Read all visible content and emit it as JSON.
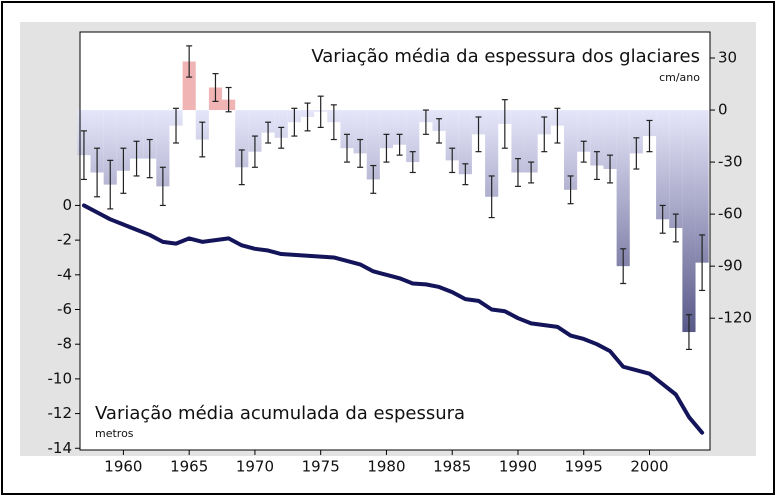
{
  "chart_data": {
    "type": "bar",
    "x": [
      1957,
      1958,
      1959,
      1960,
      1961,
      1962,
      1963,
      1964,
      1965,
      1966,
      1967,
      1968,
      1969,
      1970,
      1971,
      1972,
      1973,
      1974,
      1975,
      1976,
      1977,
      1978,
      1979,
      1980,
      1981,
      1982,
      1983,
      1984,
      1985,
      1986,
      1987,
      1988,
      1989,
      1990,
      1991,
      1992,
      1993,
      1994,
      1995,
      1996,
      1997,
      1998,
      1999,
      2000,
      2001,
      2002,
      2003,
      2004
    ],
    "xlim": [
      1956.7,
      2004.6
    ],
    "xticks": [
      1960,
      1965,
      1970,
      1975,
      1980,
      1985,
      1990,
      1995,
      2000
    ],
    "ylim": [
      -14.1,
      10
    ],
    "yticks": [
      0,
      -2,
      -4,
      -6,
      -8,
      -10,
      -12,
      -14
    ],
    "y2lim": [
      -196,
      45
    ],
    "y2ticks": [
      30,
      0,
      -30,
      -60,
      -90,
      -120
    ],
    "series": [
      {
        "name": "Variação média da espessura dos glaciares",
        "unit": "cm/ano",
        "type": "bar",
        "axis": "y2",
        "color": "#141452",
        "light_color": "#e6e6fa",
        "positive_color": "#f0b4b4",
        "values": [
          -26,
          -36,
          -43,
          -35,
          -28,
          -28,
          -44,
          -9,
          28,
          -17,
          13,
          6,
          -33,
          -24,
          -13,
          -16,
          -7,
          -4,
          -1,
          -7,
          -22,
          -25,
          -40,
          -22,
          -20,
          -30,
          -7,
          -12,
          -29,
          -37,
          -14,
          -50,
          -8,
          -36,
          -36,
          -14,
          -9,
          -46,
          -24,
          -32,
          -34,
          -90,
          -25,
          -15,
          -63,
          -68,
          -128,
          -88
        ],
        "errors": [
          14,
          14,
          14,
          13,
          10,
          11,
          11,
          10,
          9,
          10,
          8,
          7,
          10,
          9,
          6,
          6,
          8,
          8,
          9,
          10,
          8,
          8,
          8,
          8,
          6,
          6,
          7,
          7,
          7,
          6,
          10,
          12,
          14,
          8,
          6,
          10,
          10,
          8,
          6,
          8,
          8,
          10,
          9,
          9,
          8,
          8,
          10,
          16
        ]
      },
      {
        "name": "Variação média acumulada da espessura",
        "unit": "metros",
        "type": "line",
        "axis": "y",
        "color": "#14145a",
        "values": [
          0,
          -0.4,
          -0.8,
          -1.1,
          -1.4,
          -1.7,
          -2.1,
          -2.2,
          -1.9,
          -2.1,
          -2.0,
          -1.9,
          -2.3,
          -2.5,
          -2.6,
          -2.8,
          -2.85,
          -2.9,
          -2.95,
          -3.0,
          -3.2,
          -3.4,
          -3.8,
          -4.0,
          -4.2,
          -4.5,
          -4.55,
          -4.7,
          -5.0,
          -5.4,
          -5.5,
          -6.0,
          -6.1,
          -6.5,
          -6.8,
          -6.9,
          -7.0,
          -7.5,
          -7.7,
          -8.0,
          -8.4,
          -9.3,
          -9.5,
          -9.7,
          -10.3,
          -10.9,
          -12.2,
          -13.1
        ]
      }
    ]
  }
}
